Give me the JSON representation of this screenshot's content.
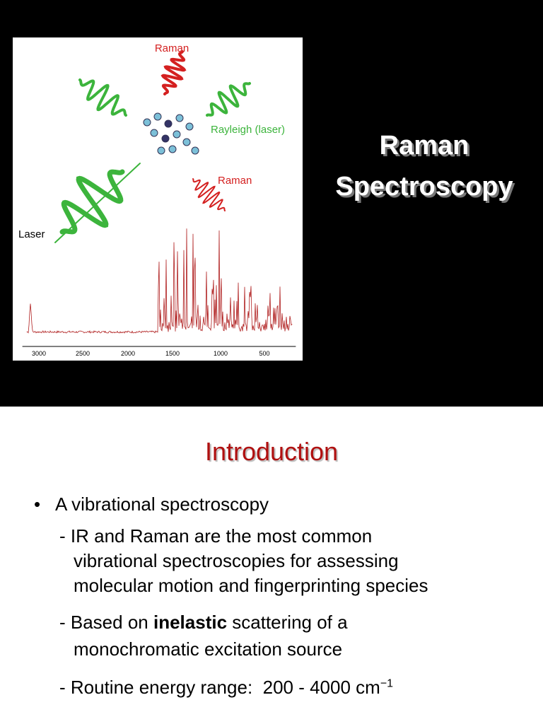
{
  "figure": {
    "labels": [
      "Raman",
      "Rayleigh (laser)",
      "Raman",
      "Laser"
    ],
    "axis_ticks": [
      "3000",
      "2500",
      "2000",
      "1500",
      "1000",
      "500"
    ]
  },
  "slide1": {
    "title_lines": [
      "Raman",
      "Spectroscopy"
    ]
  },
  "slide2": {
    "title": "Introduction",
    "bullet_symbol": "•",
    "bullet": "A vibrational spectroscopy",
    "items": [
      {
        "lines": [
          [
            "- IR and Raman are the most common"
          ],
          [
            "vibrational spectroscopies for assessing"
          ],
          [
            "molecular motion and fingerprinting species"
          ]
        ]
      },
      {
        "lines": [
          [
            "- Based on ",
            "inelastic",
            " scattering of a"
          ],
          [
            "monochromatic excitation source"
          ]
        ]
      },
      {
        "lines": [
          [
            "- Routine energy range:  200 - 4000 cm",
            "−1"
          ]
        ]
      }
    ]
  }
}
